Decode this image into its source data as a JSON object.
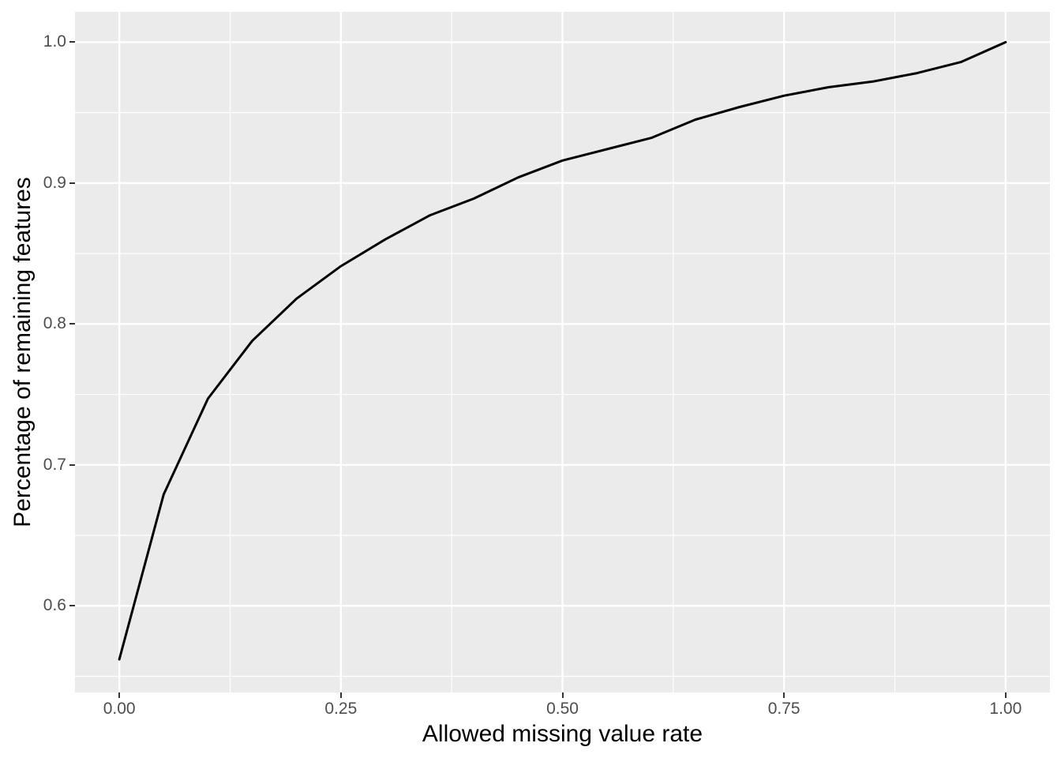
{
  "chart_data": {
    "type": "line",
    "title": "",
    "xlabel": "Allowed missing value rate",
    "ylabel": "Percentage of remaining features",
    "x": [
      0.0,
      0.05,
      0.1,
      0.15,
      0.2,
      0.25,
      0.3,
      0.35,
      0.4,
      0.45,
      0.5,
      0.55,
      0.6,
      0.65,
      0.7,
      0.75,
      0.8,
      0.85,
      0.9,
      0.95,
      1.0
    ],
    "y": [
      0.562,
      0.679,
      0.747,
      0.788,
      0.818,
      0.841,
      0.86,
      0.877,
      0.889,
      0.904,
      0.916,
      0.924,
      0.932,
      0.945,
      0.954,
      0.962,
      0.968,
      0.972,
      0.978,
      0.986,
      1.0
    ],
    "x_domain": [
      -0.05,
      1.05
    ],
    "y_domain": [
      0.5385,
      1.0215
    ],
    "x_ticks": {
      "values": [
        0.0,
        0.25,
        0.5,
        0.75,
        1.0
      ],
      "labels": [
        "0.00",
        "0.25",
        "0.50",
        "0.75",
        "1.00"
      ]
    },
    "y_ticks": {
      "values": [
        0.6,
        0.7,
        0.8,
        0.9,
        1.0
      ],
      "labels": [
        "0.6",
        "0.7",
        "0.8",
        "0.9",
        "1.0"
      ]
    },
    "x_minor": [
      0.125,
      0.375,
      0.625,
      0.875
    ],
    "y_minor": [
      0.55,
      0.65,
      0.75,
      0.85,
      0.95
    ],
    "grid": true,
    "legend": false,
    "colors": {
      "line": "#000000",
      "panel_bg": "#EBEBEB",
      "grid": "#FFFFFF",
      "tick_label": "#4D4D4D",
      "axis_title": "#000000",
      "tick_mark": "#333333"
    }
  }
}
